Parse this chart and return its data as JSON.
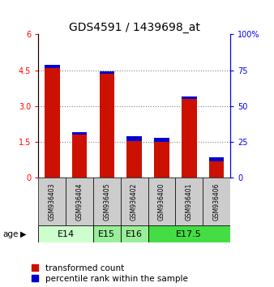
{
  "title": "GDS4591 / 1439698_at",
  "samples": [
    "GSM936403",
    "GSM936404",
    "GSM936405",
    "GSM936402",
    "GSM936400",
    "GSM936401",
    "GSM936406"
  ],
  "red_values": [
    4.6,
    1.8,
    4.35,
    1.55,
    1.5,
    3.3,
    0.7
  ],
  "blue_seg_heights": [
    0.12,
    0.12,
    0.12,
    0.18,
    0.18,
    0.12,
    0.15
  ],
  "ylim_left": [
    0,
    6
  ],
  "ylim_right": [
    0,
    100
  ],
  "yticks_left": [
    0,
    1.5,
    3.0,
    4.5,
    6
  ],
  "yticks_right": [
    0,
    25,
    50,
    75,
    100
  ],
  "ytick_labels_right": [
    "0",
    "25",
    "50",
    "75",
    "100%"
  ],
  "age_groups": [
    {
      "label": "E14",
      "start": 0,
      "end": 1,
      "color": "#ccffcc"
    },
    {
      "label": "E15",
      "start": 2,
      "end": 2,
      "color": "#99ee99"
    },
    {
      "label": "E16",
      "start": 3,
      "end": 3,
      "color": "#99ee99"
    },
    {
      "label": "E17.5",
      "start": 4,
      "end": 6,
      "color": "#44dd44"
    }
  ],
  "bar_color_red": "#cc1100",
  "bar_color_blue": "#0000cc",
  "bar_width": 0.55,
  "bg_color": "#ffffff",
  "sample_bg_color": "#cccccc",
  "title_fontsize": 10,
  "tick_fontsize": 7,
  "label_fontsize": 7,
  "legend_fontsize": 7.5,
  "age_fontsize": 8
}
